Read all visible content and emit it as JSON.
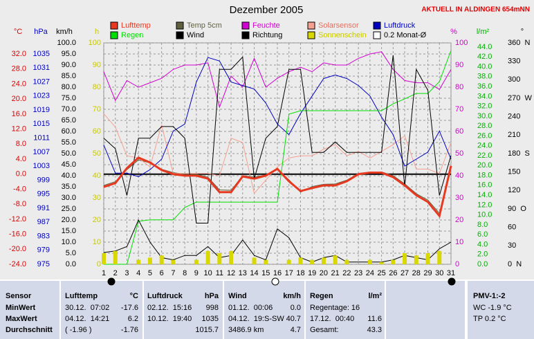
{
  "header": {
    "title": "Dezember 2005",
    "location": "AKTUELL IN ALDINGEN 654mNN"
  },
  "chart_data": {
    "type": "line",
    "x": [
      1,
      2,
      3,
      4,
      5,
      6,
      7,
      8,
      9,
      10,
      11,
      12,
      13,
      14,
      15,
      16,
      17,
      18,
      19,
      20,
      21,
      22,
      23,
      24,
      25,
      26,
      27,
      28,
      29,
      30,
      31
    ],
    "xlim": [
      1,
      31
    ],
    "xticks": [
      1,
      2,
      3,
      4,
      5,
      6,
      7,
      8,
      9,
      10,
      11,
      12,
      13,
      14,
      15,
      16,
      17,
      18,
      19,
      20,
      21,
      22,
      23,
      24,
      25,
      26,
      27,
      28,
      29,
      30,
      31
    ],
    "grid": true,
    "axes": {
      "temp": {
        "label": "°C",
        "color": "#e00000",
        "lim": [
          -24,
          34.947
        ],
        "ticks": [
          {
            "value": -24,
            "label": "-24.0"
          },
          {
            "value": -20,
            "label": "-20.0"
          },
          {
            "value": -16,
            "label": "-16.0"
          },
          {
            "value": -12,
            "label": "-12.0"
          },
          {
            "value": -8,
            "label": "-8.0"
          },
          {
            "value": -4,
            "label": "-4.0"
          },
          {
            "value": 0,
            "label": "0.0"
          },
          {
            "value": 4,
            "label": "4.0"
          },
          {
            "value": 8,
            "label": "8.0"
          },
          {
            "value": 12,
            "label": "12.0"
          },
          {
            "value": 16,
            "label": "16.0"
          },
          {
            "value": 20,
            "label": "20.0"
          },
          {
            "value": 24,
            "label": "24.0"
          },
          {
            "value": 28,
            "label": "28.0"
          },
          {
            "value": 32,
            "label": "32.0"
          }
        ]
      },
      "pressure": {
        "label": "hPa",
        "color": "#0000c0",
        "lim": [
          975,
          1038.16
        ],
        "ticks": [
          975,
          979,
          983,
          987,
          991,
          995,
          999,
          1003,
          1007,
          1011,
          1015,
          1019,
          1023,
          1027,
          1031,
          1035
        ]
      },
      "wind": {
        "label": "km/h",
        "color": "#000000",
        "lim": [
          0,
          100
        ],
        "ticks": [
          {
            "value": 0,
            "label": "0.0"
          },
          {
            "value": 5,
            "label": "5.0"
          },
          {
            "value": 10,
            "label": "10.0"
          },
          {
            "value": 15,
            "label": "15.0"
          },
          {
            "value": 20,
            "label": "20.0"
          },
          {
            "value": 25,
            "label": "25.0"
          },
          {
            "value": 30,
            "label": "30.0"
          },
          {
            "value": 35,
            "label": "35.0"
          },
          {
            "value": 40,
            "label": "40.0"
          },
          {
            "value": 45,
            "label": "45.0"
          },
          {
            "value": 50,
            "label": "50.0"
          },
          {
            "value": 55,
            "label": "55.0"
          },
          {
            "value": 60,
            "label": "60.0"
          },
          {
            "value": 65,
            "label": "65.0"
          },
          {
            "value": 70,
            "label": "70.0"
          },
          {
            "value": 75,
            "label": "75.0"
          },
          {
            "value": 80,
            "label": "80.0"
          },
          {
            "value": 85,
            "label": "85.0"
          },
          {
            "value": 90,
            "label": "90.0"
          },
          {
            "value": 95,
            "label": "95.0"
          },
          {
            "value": 100,
            "label": "100.0"
          }
        ]
      },
      "sun": {
        "label": "h",
        "color": "#c8c800",
        "lim": [
          0,
          100
        ],
        "ticks": [
          0,
          10,
          20,
          30,
          40,
          50,
          60,
          70,
          80,
          90,
          100
        ]
      },
      "humidity": {
        "label": "%",
        "color": "#d000d0",
        "lim": [
          0,
          100
        ],
        "ticks": [
          0,
          10,
          20,
          30,
          40,
          50,
          60,
          70,
          80,
          90,
          100
        ]
      },
      "rain": {
        "label": "l/m²",
        "color": "#00b000",
        "lim": [
          0,
          44.84
        ],
        "ticks": [
          {
            "value": 0,
            "label": "0.0"
          },
          {
            "value": 2,
            "label": "2.0"
          },
          {
            "value": 4,
            "label": "4.0"
          },
          {
            "value": 6,
            "label": "6.0"
          },
          {
            "value": 8,
            "label": "8.0"
          },
          {
            "value": 10,
            "label": "10.0"
          },
          {
            "value": 12,
            "label": "12.0"
          },
          {
            "value": 14,
            "label": "14.0"
          },
          {
            "value": 16,
            "label": "16.0"
          },
          {
            "value": 18,
            "label": "18.0"
          },
          {
            "value": 20,
            "label": "20.0"
          },
          {
            "value": 22,
            "label": "22.0"
          },
          {
            "value": 24,
            "label": "24.0"
          },
          {
            "value": 26,
            "label": "26.0"
          },
          {
            "value": 28,
            "label": "28.0"
          },
          {
            "value": 30,
            "label": "30.0"
          },
          {
            "value": 32,
            "label": "32.0"
          },
          {
            "value": 34,
            "label": "34.0"
          },
          {
            "value": 36,
            "label": "36.0"
          },
          {
            "value": 38,
            "label": "38.0"
          },
          {
            "value": 40,
            "label": "40.0"
          },
          {
            "value": 42,
            "label": "42.0"
          },
          {
            "value": 44,
            "label": "44.0"
          }
        ]
      },
      "direction": {
        "label": "°",
        "color": "#000000",
        "lim": [
          0,
          360
        ],
        "ticks": [
          {
            "value": 0,
            "label": "0  N"
          },
          30,
          60,
          {
            "value": 90,
            "label": "90  O"
          },
          120,
          150,
          {
            "value": 180,
            "label": "180  S"
          },
          210,
          240,
          {
            "value": 270,
            "label": "270  W"
          },
          300,
          330,
          {
            "value": 360,
            "label": "360  N"
          }
        ]
      }
    },
    "series": [
      {
        "name": "Lufttemp",
        "color": "#e83820",
        "axis": "temp",
        "width": 3,
        "values": [
          -3.4,
          -2.4,
          1.6,
          4.4,
          3.1,
          1.1,
          0.0,
          -0.4,
          -0.4,
          -1.2,
          -4.8,
          -4.8,
          -0.6,
          -1.2,
          -0.4,
          1.4,
          -1.9,
          -4.5,
          -3.7,
          -3.0,
          -3.0,
          -1.9,
          0.0,
          0.4,
          0.4,
          -0.8,
          -3.0,
          -5.6,
          -7.4,
          -11.1,
          2.2
        ]
      },
      {
        "name": "Temp 5cm",
        "color": "#606040",
        "axis": "temp",
        "width": 1,
        "values": [
          -3.0,
          -2.0,
          1.2,
          3.8,
          3.0,
          1.3,
          0.4,
          0.0,
          0.0,
          -0.8,
          -4.2,
          -4.3,
          -0.4,
          -0.8,
          -0.2,
          1.2,
          -1.5,
          -4.8,
          -3.3,
          -2.7,
          -2.6,
          -1.6,
          0.2,
          0.5,
          0.6,
          -0.4,
          -2.6,
          -5.2,
          -6.9,
          -10.4,
          1.5
        ]
      },
      {
        "name": "Feuchte",
        "color": "#d000d0",
        "axis": "humidity",
        "width": 1,
        "values": [
          87,
          74,
          83,
          80,
          82,
          84,
          88,
          90,
          90,
          91,
          71,
          85,
          80,
          93,
          80,
          84,
          87,
          89,
          87,
          91,
          90,
          90,
          93,
          95,
          96,
          88,
          83,
          82,
          82,
          79,
          88
        ]
      },
      {
        "name": "Solarsensor",
        "color": "#f4a090",
        "axis": "humidity",
        "width": 1,
        "values": [
          68,
          62,
          49,
          48,
          44,
          63,
          41,
          41,
          41,
          41,
          40,
          57,
          55,
          32,
          38,
          44,
          48,
          49,
          49,
          52,
          54,
          49,
          51,
          48,
          51,
          54,
          58,
          43,
          43,
          41,
          55
        ]
      },
      {
        "name": "Luftdruck",
        "color": "#0000c0",
        "axis": "pressure",
        "width": 1,
        "values": [
          1009,
          1001,
          1001,
          1000,
          1002,
          1005,
          1013,
          1015,
          1027,
          1034,
          1033,
          1027,
          1026,
          1025,
          1021,
          1015,
          1012,
          1018,
          1023,
          1028,
          1029,
          1028,
          1026,
          1023,
          1017,
          1012,
          1003,
          1005,
          1007,
          1013,
          1005
        ]
      },
      {
        "name": "Regen",
        "color": "#00e000",
        "axis": "rain",
        "width": 1,
        "values": [
          0,
          0,
          0,
          8.7,
          9.0,
          9.0,
          9.0,
          11.5,
          12.6,
          12.6,
          12.6,
          12.6,
          12.6,
          12.6,
          12.6,
          12.6,
          30.4,
          31.1,
          31.1,
          31.1,
          31.1,
          31.1,
          31.1,
          31.1,
          31.1,
          32.5,
          33.5,
          34.6,
          34.6,
          37.0,
          43.3
        ]
      },
      {
        "name": "Wind",
        "color": "#000000",
        "axis": "wind",
        "width": 1,
        "values": [
          5.3,
          6,
          8,
          20,
          10,
          3,
          2,
          4,
          4,
          8,
          3,
          4,
          11,
          4,
          2,
          16,
          12,
          3,
          1,
          3,
          4,
          1,
          1,
          1,
          1,
          2,
          4,
          3,
          2,
          7,
          10
        ]
      },
      {
        "name": "Richtung",
        "color": "#000000",
        "axis": "direction",
        "width": 1,
        "values": [
          205,
          188,
          112,
          205,
          205,
          224,
          224,
          205,
          67,
          67,
          317,
          317,
          337,
          139,
          205,
          224,
          317,
          317,
          182,
          182,
          199,
          182,
          182,
          182,
          182,
          340,
          126,
          317,
          283,
          112,
          177
        ]
      },
      {
        "name": "Sonnenschein",
        "color": "#d8d800",
        "axis": "sun",
        "style": "bar",
        "values": [
          5,
          6,
          0,
          2,
          3,
          4,
          2,
          0,
          2,
          6,
          5,
          6,
          0,
          3,
          2,
          0,
          2,
          3,
          2,
          3,
          4,
          2,
          0,
          2,
          1,
          2,
          5,
          4,
          5,
          6,
          0
        ]
      }
    ],
    "legend_note": {
      "name": "0.2 Monat-Ø",
      "color": "#ffffff"
    }
  },
  "table": {
    "rows": [
      {
        "label": "Sensor",
        "temp": {
          "l": "Lufttemp",
          "r": "°C"
        },
        "pressure": {
          "l": "Luftdruck",
          "r": "hPa"
        },
        "wind": {
          "l": "Wind",
          "r": "km/h"
        },
        "rain": {
          "l": "Regen",
          "r": "l/m²"
        },
        "pmv": {
          "l": "PMV-1:-2"
        }
      },
      {
        "label": "MinWert",
        "temp": {
          "l": "30.12.  07:02",
          "r": "-17.6"
        },
        "pressure": {
          "l": "02.12.  15:16",
          "r": "998"
        },
        "wind": {
          "l": "01.12.  00:06",
          "r": "0.0"
        },
        "rain": {
          "l": "Regentage: 16"
        },
        "pmv": {
          "l": "WC -1.9 °C"
        }
      },
      {
        "label": "MaxWert",
        "temp": {
          "l": "04.12.  14:21",
          "r": "6.2"
        },
        "pressure": {
          "l": "10.12.  19:40",
          "r": "1035"
        },
        "wind": {
          "l": "04.12.  19:S-SW",
          "r": "40.7"
        },
        "rain": {
          "l": "17.12.  00:40",
          "r": "11.6"
        },
        "pmv": {
          "l": "TP 0.2 °C"
        }
      },
      {
        "label": "Durchschnitt",
        "temp": {
          "l": "( -1.96 )",
          "r": "-1.76"
        },
        "pressure": {
          "r": "1015.7"
        },
        "wind": {
          "l": "3486.9 km",
          "r": "4.7"
        },
        "rain": {
          "l": "Gesamt:",
          "r": "43.3"
        }
      }
    ]
  }
}
